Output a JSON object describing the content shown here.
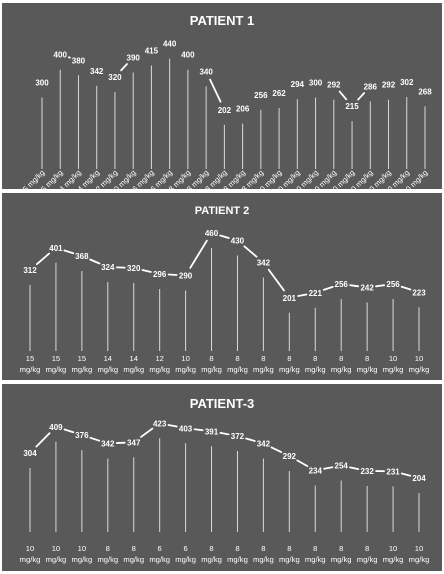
{
  "chart_data": [
    {
      "type": "line",
      "title": "PATIENT 1",
      "x": [
        "15 mg/kg",
        "15 mg/kg",
        "14 mg/kg",
        "14 mg/kg",
        "12 mg/kg",
        "10 mg/kg",
        "6 mg/kg",
        "6 mg/kg",
        "8 mg/kg",
        "8 mg/kg",
        "8 mg/kg",
        "8 mg/kg",
        "8 mg/kg",
        "10 mg/kg",
        "10 mg/kg",
        "10 mg/kg",
        "10 mg/kg",
        "10 mg/kg",
        "10 mg/kg",
        "10 mg/kg",
        "10 mg/kg",
        "10 mg/kg"
      ],
      "values": [
        300,
        400,
        380,
        342,
        320,
        390,
        415,
        440,
        400,
        340,
        202,
        206,
        256,
        262,
        294,
        300,
        292,
        215,
        286,
        292,
        302,
        268
      ],
      "connected": [
        false,
        true,
        false,
        false,
        true,
        false,
        false,
        false,
        false,
        true,
        false,
        false,
        false,
        false,
        false,
        false,
        true,
        true,
        false,
        false,
        false
      ],
      "ylim": [
        0,
        460
      ],
      "grid": false
    },
    {
      "type": "line",
      "title": "PATIENT 2",
      "x": [
        "15 mg/kg",
        "15 mg/kg",
        "15 mg/kg",
        "14 mg/kg",
        "14 mg/kg",
        "12 mg/kg",
        "10 mg/kg",
        "8 mg/kg",
        "8 mg/kg",
        "8 mg/kg",
        "8 mg/kg",
        "8 mg/kg",
        "8 mg/kg",
        "8 mg/kg",
        "10 mg/kg",
        "10 mg/kg"
      ],
      "values": [
        312,
        401,
        368,
        324,
        320,
        296,
        290,
        460,
        430,
        342,
        201,
        221,
        256,
        242,
        256,
        223
      ],
      "connected": [
        true,
        true,
        true,
        true,
        true,
        true,
        true,
        true,
        true,
        true,
        true,
        true,
        true,
        true,
        true
      ],
      "ylim": [
        0,
        480
      ],
      "grid": false
    },
    {
      "type": "line",
      "title": "PATIENT-3",
      "x": [
        "10 mg/kg",
        "10 mg/kg",
        "10 mg/kg",
        "8 mg/kg",
        "8 mg/kg",
        "6 mg/kg",
        "6 mg/kg",
        "8 mg/kg",
        "8 mg/kg",
        "8 mg/kg",
        "8 mg/kg",
        "8 mg/kg",
        "8 mg/kg",
        "8 mg/kg",
        "10 mg/kg",
        "10 mg/kg"
      ],
      "values": [
        304,
        409,
        376,
        342,
        347,
        423,
        403,
        391,
        372,
        342,
        292,
        234,
        254,
        232,
        231,
        204
      ],
      "connected": [
        true,
        true,
        true,
        true,
        true,
        true,
        true,
        true,
        true,
        true,
        true,
        true,
        true,
        true,
        true
      ],
      "ylim": [
        0,
        440
      ],
      "grid": false
    }
  ]
}
